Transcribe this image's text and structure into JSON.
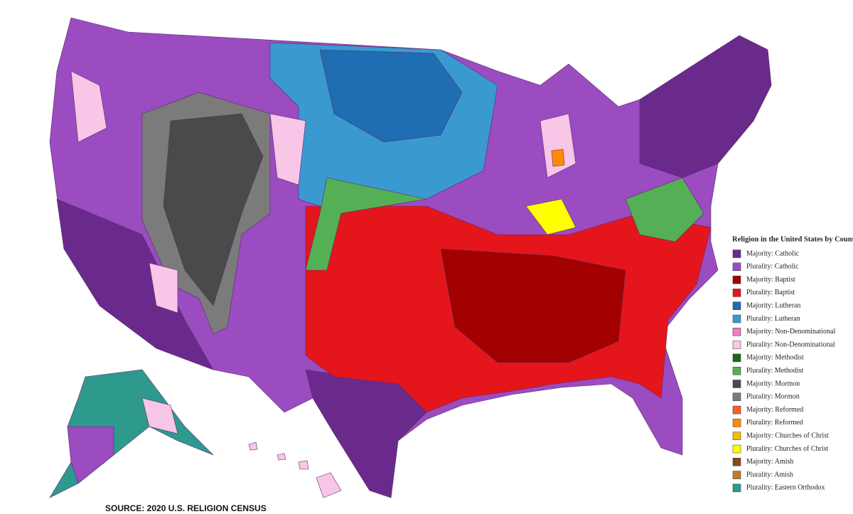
{
  "map": {
    "legend_title": "Religion in the United States by County",
    "legend": [
      {
        "label": "Majority: Catholic",
        "color": "#6a2a8c"
      },
      {
        "label": "Plurality: Catholic",
        "color": "#9b4cc0"
      },
      {
        "label": "Majority: Baptist",
        "color": "#a30000"
      },
      {
        "label": "Plurality: Baptist",
        "color": "#e4161c"
      },
      {
        "label": "Majority: Lutheran",
        "color": "#1f6db2"
      },
      {
        "label": "Plurality: Lutheran",
        "color": "#3a9ad0"
      },
      {
        "label": "Majority: Non-Denominational",
        "color": "#ee7ec4"
      },
      {
        "label": "Plurality: Non-Denominational",
        "color": "#f8c6e6"
      },
      {
        "label": "Majority: Methodist",
        "color": "#196b1c"
      },
      {
        "label": "Plurality: Methodist",
        "color": "#55b055"
      },
      {
        "label": "Majority: Mormon",
        "color": "#4a4a4a"
      },
      {
        "label": "Plurality: Mormon",
        "color": "#7b7b7b"
      },
      {
        "label": "Majority: Reformed",
        "color": "#ff5a2a"
      },
      {
        "label": "Plurality: Reformed",
        "color": "#ff8a00"
      },
      {
        "label": "Majority: Churches of Christ",
        "color": "#f0c000"
      },
      {
        "label": "Plurality: Churches of Christ",
        "color": "#ffff00"
      },
      {
        "label": "Majority: Amish",
        "color": "#8b4a10"
      },
      {
        "label": "Plurality: Amish",
        "color": "#c07a30"
      },
      {
        "label": "Plurality: Eastern Orthodox",
        "color": "#2e9a8e"
      }
    ],
    "source": "SOURCE: 2020 U.S. RELIGION CENSUS"
  }
}
